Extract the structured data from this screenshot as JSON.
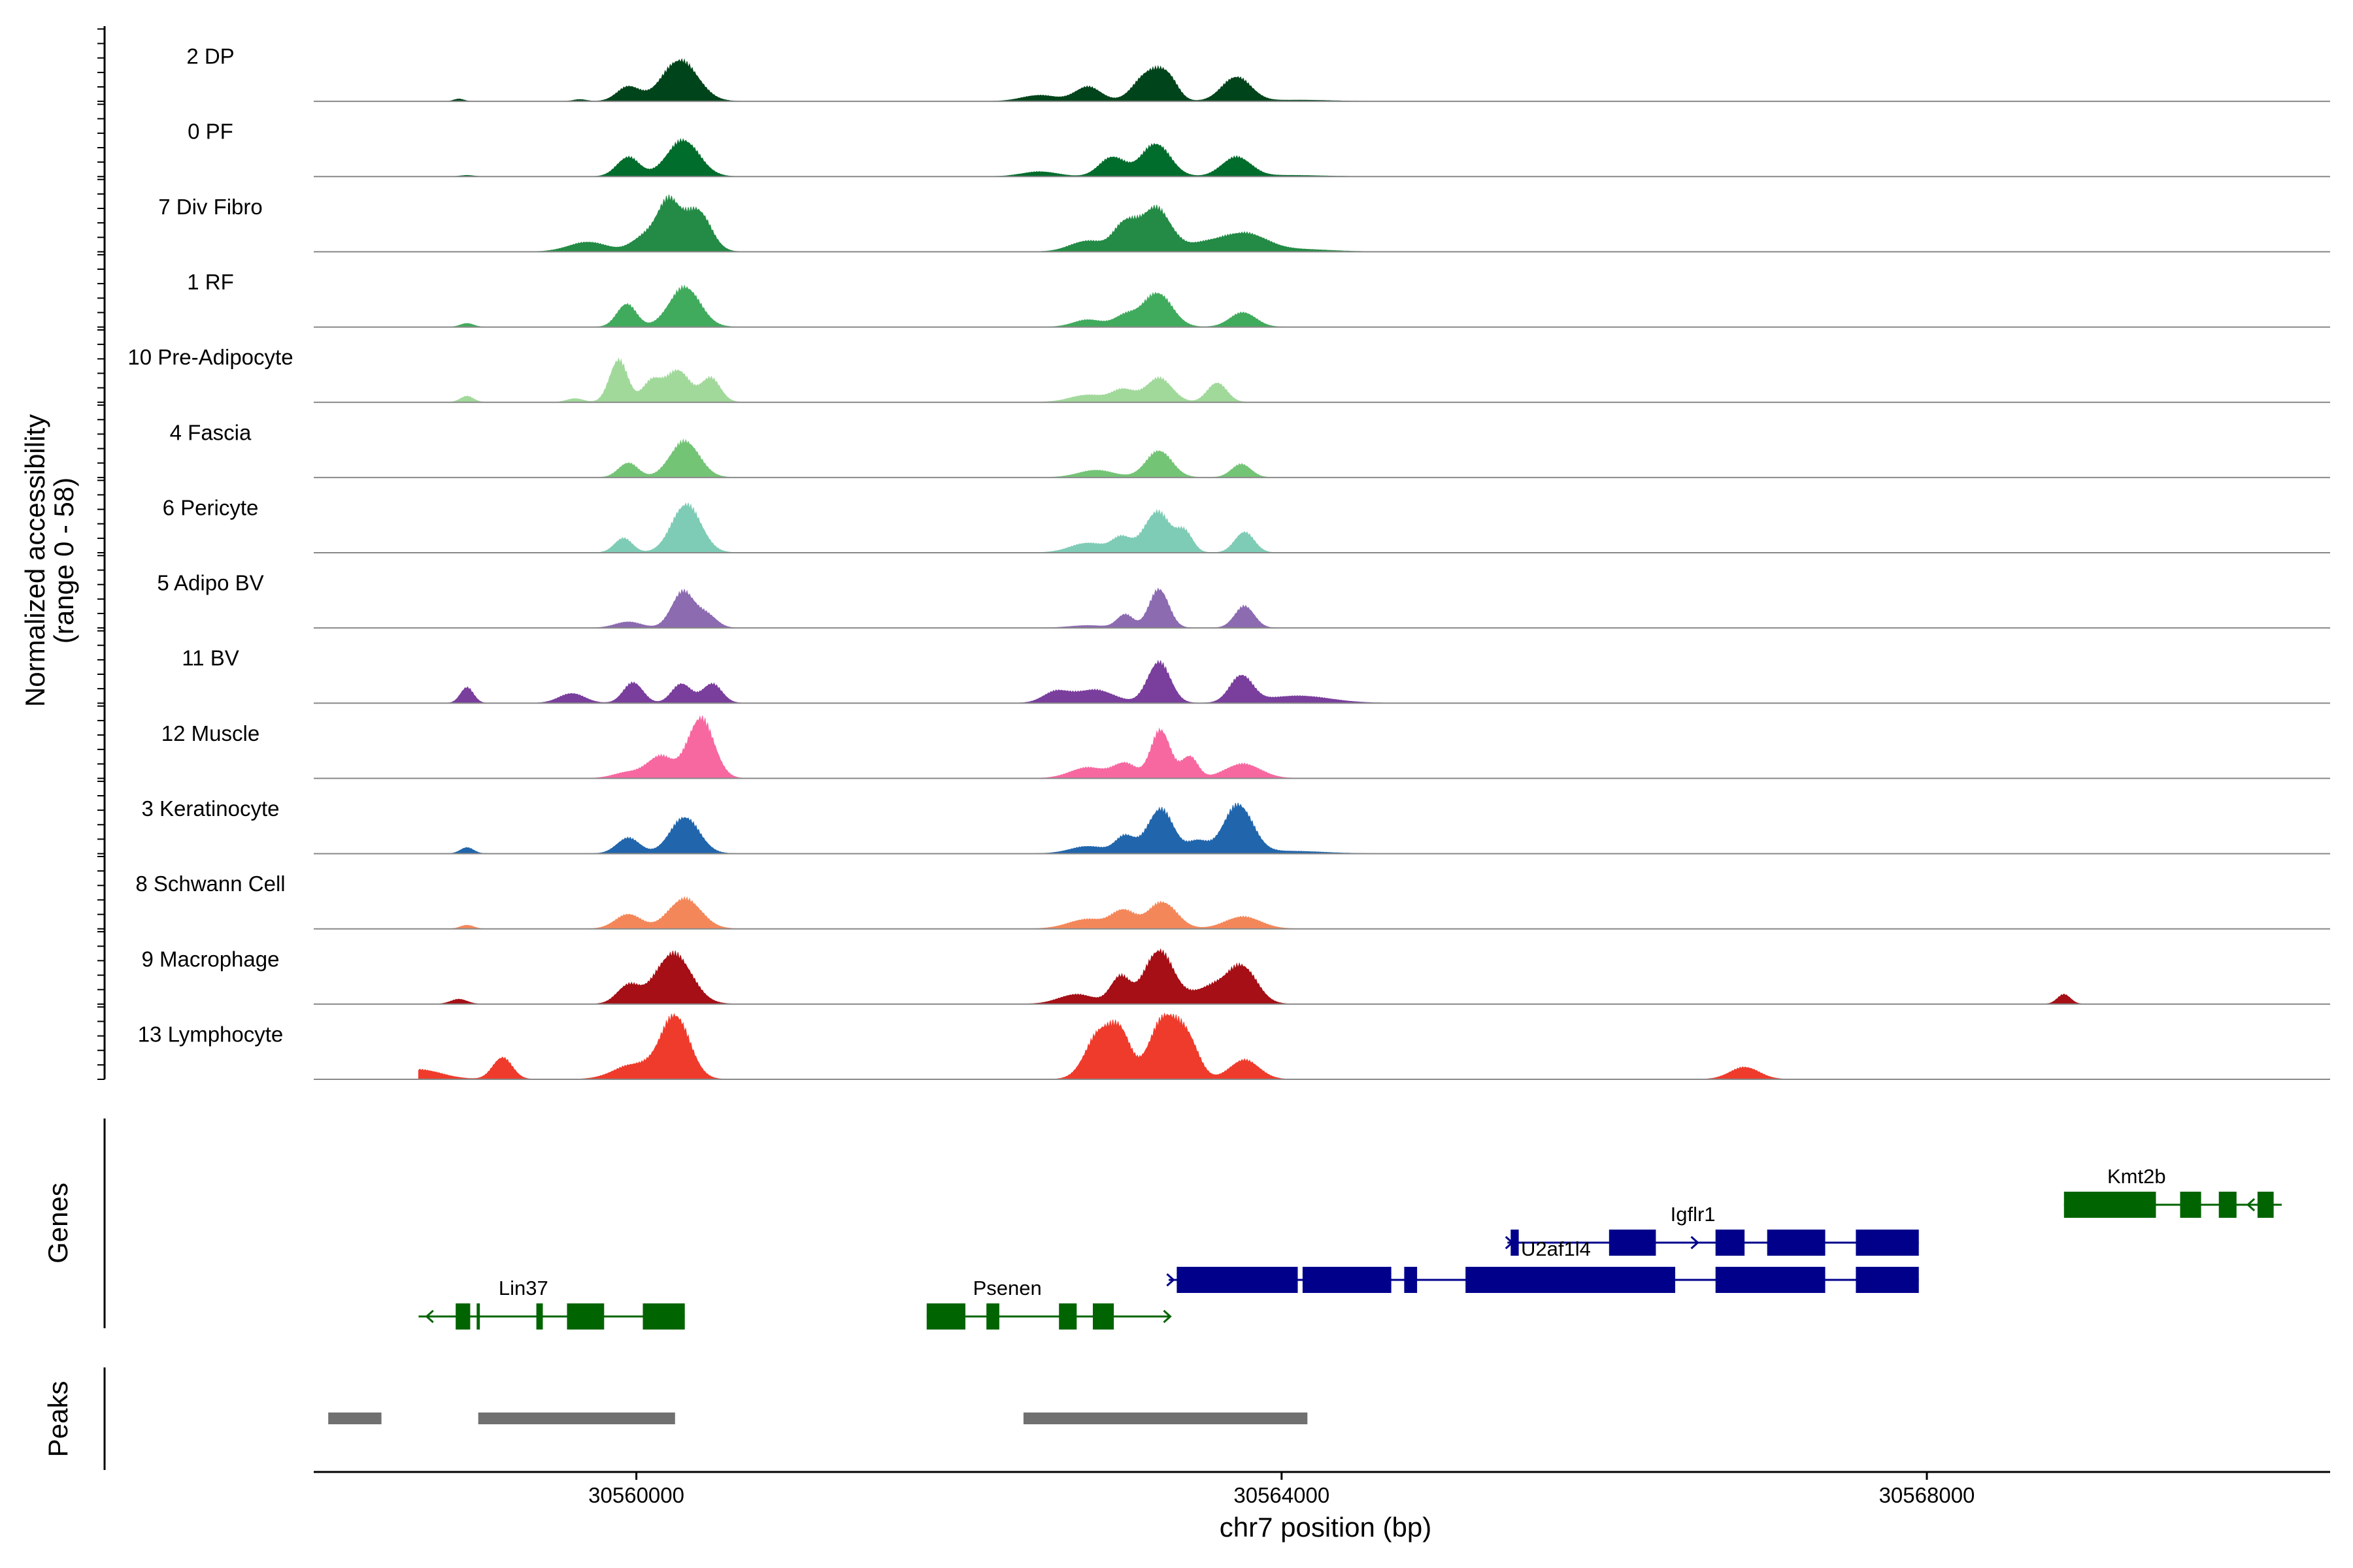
{
  "chart_data": {
    "type": "area",
    "title": "",
    "xlabel": "chr7 position (bp)",
    "ylabel": "Normalized accessibility",
    "ylabel_sub": "(range 0 - 58)",
    "xlim": [
      30558000,
      30570500
    ],
    "ylim": [
      0,
      58
    ],
    "x_ticks": [
      30560000,
      30564000,
      30568000
    ],
    "x_tick_labels": [
      "30560000",
      "30564000",
      "30568000"
    ],
    "tracks": [
      {
        "name": "2 DP",
        "color": "#00441b",
        "peaks": [
          [
            30558900,
            30,
            2
          ],
          [
            30559650,
            40,
            1.5
          ],
          [
            30559950,
            70,
            12
          ],
          [
            30560270,
            110,
            34
          ],
          [
            30562500,
            110,
            5
          ],
          [
            30562800,
            80,
            12
          ],
          [
            30563180,
            90,
            24
          ],
          [
            30563300,
            60,
            14
          ],
          [
            30563720,
            90,
            20
          ],
          [
            30564100,
            200,
            1
          ]
        ]
      },
      {
        "name": "0 PF",
        "color": "#006d2c",
        "peaks": [
          [
            30558950,
            40,
            1
          ],
          [
            30559950,
            70,
            16
          ],
          [
            30560290,
            100,
            30
          ],
          [
            30562500,
            110,
            4
          ],
          [
            30562950,
            80,
            16
          ],
          [
            30563220,
            90,
            27
          ],
          [
            30563720,
            90,
            16
          ],
          [
            30564050,
            200,
            1
          ]
        ]
      },
      {
        "name": "7 Div Fibro",
        "color": "#238b45",
        "peaks": [
          [
            30559700,
            120,
            8
          ],
          [
            30560050,
            80,
            12
          ],
          [
            30560200,
            70,
            40
          ],
          [
            30560380,
            80,
            34
          ],
          [
            30562800,
            110,
            9
          ],
          [
            30563030,
            70,
            22
          ],
          [
            30563220,
            90,
            36
          ],
          [
            30563530,
            130,
            7
          ],
          [
            30563780,
            130,
            14
          ],
          [
            30564100,
            200,
            2
          ]
        ]
      },
      {
        "name": "1 RF",
        "color": "#41ab5d",
        "peaks": [
          [
            30558950,
            40,
            3
          ],
          [
            30559940,
            60,
            19
          ],
          [
            30560300,
            95,
            33
          ],
          [
            30562800,
            90,
            6
          ],
          [
            30563030,
            70,
            9
          ],
          [
            30563230,
            90,
            28
          ],
          [
            30563760,
            80,
            12
          ]
        ]
      },
      {
        "name": "10 Pre-Adipocyte",
        "color": "#a1d99b",
        "peaks": [
          [
            30558950,
            40,
            5
          ],
          [
            30559620,
            50,
            3
          ],
          [
            30559890,
            55,
            35
          ],
          [
            30560100,
            60,
            18
          ],
          [
            30560260,
            70,
            26
          ],
          [
            30560460,
            60,
            20
          ],
          [
            30562800,
            110,
            6
          ],
          [
            30563020,
            70,
            10
          ],
          [
            30563240,
            80,
            20
          ],
          [
            30563600,
            60,
            16
          ]
        ]
      },
      {
        "name": "4 Fascia",
        "color": "#74c476",
        "peaks": [
          [
            30559950,
            60,
            12
          ],
          [
            30560300,
            90,
            30
          ],
          [
            30562850,
            110,
            6
          ],
          [
            30563240,
            80,
            22
          ],
          [
            30563750,
            60,
            11
          ]
        ]
      },
      {
        "name": "6 Pericyte",
        "color": "#7fccb6",
        "peaks": [
          [
            30559920,
            55,
            12
          ],
          [
            30560310,
            90,
            40
          ],
          [
            30562800,
            110,
            8
          ],
          [
            30563010,
            60,
            12
          ],
          [
            30563230,
            80,
            34
          ],
          [
            30563400,
            50,
            16
          ],
          [
            30563770,
            60,
            17
          ]
        ]
      },
      {
        "name": "5 Adipo BV",
        "color": "#8c6bb1",
        "peaks": [
          [
            30559950,
            80,
            5
          ],
          [
            30560290,
            70,
            30
          ],
          [
            30560440,
            60,
            10
          ],
          [
            30562800,
            110,
            2
          ],
          [
            30563030,
            50,
            11
          ],
          [
            30563240,
            60,
            32
          ],
          [
            30563770,
            60,
            18
          ]
        ]
      },
      {
        "name": "11 BV",
        "color": "#7a3e9d",
        "peaks": [
          [
            30558950,
            40,
            13
          ],
          [
            30559600,
            80,
            8
          ],
          [
            30559980,
            60,
            17
          ],
          [
            30560280,
            60,
            16
          ],
          [
            30560470,
            60,
            16
          ],
          [
            30562600,
            80,
            9
          ],
          [
            30562840,
            120,
            11
          ],
          [
            30563240,
            70,
            34
          ],
          [
            30563750,
            70,
            22
          ],
          [
            30564100,
            200,
            6
          ]
        ]
      },
      {
        "name": "12 Muscle",
        "color": "#f768a1",
        "peaks": [
          [
            30559950,
            90,
            5
          ],
          [
            30560150,
            80,
            18
          ],
          [
            30560400,
            80,
            50
          ],
          [
            30562800,
            110,
            9
          ],
          [
            30563030,
            70,
            12
          ],
          [
            30563250,
            60,
            40
          ],
          [
            30563430,
            50,
            18
          ],
          [
            30563760,
            110,
            12
          ]
        ]
      },
      {
        "name": "3 Keratinocyte",
        "color": "#2166ac",
        "peaks": [
          [
            30558950,
            40,
            5
          ],
          [
            30559950,
            70,
            13
          ],
          [
            30560300,
            90,
            30
          ],
          [
            30562800,
            110,
            6
          ],
          [
            30563030,
            60,
            14
          ],
          [
            30563250,
            80,
            37
          ],
          [
            30563480,
            60,
            10
          ],
          [
            30563730,
            90,
            40
          ],
          [
            30564050,
            200,
            2
          ]
        ]
      },
      {
        "name": "8 Schwann Cell",
        "color": "#f4875a",
        "peaks": [
          [
            30558950,
            40,
            3
          ],
          [
            30559950,
            80,
            12
          ],
          [
            30560300,
            100,
            25
          ],
          [
            30562800,
            120,
            8
          ],
          [
            30563020,
            70,
            14
          ],
          [
            30563260,
            90,
            22
          ],
          [
            30563760,
            110,
            10
          ]
        ]
      },
      {
        "name": "9 Macrophage",
        "color": "#a50f15",
        "peaks": [
          [
            30558900,
            50,
            4
          ],
          [
            30559950,
            70,
            15
          ],
          [
            30560230,
            110,
            42
          ],
          [
            30562730,
            110,
            8
          ],
          [
            30563000,
            60,
            22
          ],
          [
            30563240,
            90,
            44
          ],
          [
            30563570,
            120,
            14
          ],
          [
            30563760,
            90,
            28
          ],
          [
            30568850,
            40,
            8
          ]
        ]
      },
      {
        "name": "13 Lymphocyte",
        "color": "#ef3b2c",
        "peaks": [
          [
            30558650,
            140,
            8
          ],
          [
            30559170,
            60,
            18
          ],
          [
            30559980,
            120,
            12
          ],
          [
            30560240,
            90,
            52
          ],
          [
            30562880,
            90,
            40
          ],
          [
            30563010,
            60,
            28
          ],
          [
            30563270,
            90,
            50
          ],
          [
            30563420,
            70,
            28
          ],
          [
            30563770,
            90,
            16
          ],
          [
            30566870,
            90,
            10
          ]
        ]
      }
    ],
    "genes": [
      {
        "name": "Lin37",
        "strand": "-",
        "color": "#006400",
        "start": 30558650,
        "end": 30560300,
        "exons": [
          [
            30558880,
            30558970
          ],
          [
            30559010,
            30559030
          ],
          [
            30559380,
            30559420
          ],
          [
            30559570,
            30559800
          ],
          [
            30560040,
            30560300
          ]
        ],
        "label_x": 30559300
      },
      {
        "name": "Psenen",
        "strand": "+",
        "color": "#006400",
        "start": 30561800,
        "end": 30563300,
        "exons": [
          [
            30561800,
            30562040
          ],
          [
            30562170,
            30562250
          ],
          [
            30562620,
            30562730
          ],
          [
            30562830,
            30562960
          ]
        ],
        "label_x": 30562300
      },
      {
        "name": "Igflr1",
        "strand": "+",
        "color": "#00008b",
        "start": 30565400,
        "end": 30567950,
        "exons": [
          [
            30565420,
            30565470
          ],
          [
            30566030,
            30566320
          ],
          [
            30566690,
            30566870
          ],
          [
            30567010,
            30567370
          ],
          [
            30567560,
            30567950
          ]
        ],
        "label_x": 30566550
      },
      {
        "name": "U2af1l4",
        "strand": "+",
        "color": "#00008b",
        "start": 30563300,
        "end": 30567950,
        "exons": [
          [
            30563350,
            30564100
          ],
          [
            30564130,
            30564680
          ],
          [
            30564760,
            30564840
          ],
          [
            30565140,
            30566440
          ],
          [
            30566690,
            30567370
          ],
          [
            30567560,
            30567950
          ]
        ],
        "label_x": 30565700
      },
      {
        "name": "Kmt2b",
        "strand": "-",
        "color": "#006400",
        "start": 30568850,
        "end": 30570200,
        "exons": [
          [
            30568850,
            30569420
          ],
          [
            30569570,
            30569700
          ],
          [
            30569810,
            30569920
          ],
          [
            30570050,
            30570150
          ]
        ],
        "label_x": 30569300
      }
    ],
    "peak_regions": [
      [
        30558090,
        30558420
      ],
      [
        30559020,
        30560240
      ],
      [
        30562400,
        30564160
      ]
    ],
    "panel_labels": {
      "genes": "Genes",
      "peaks": "Peaks"
    },
    "colors": {
      "axis": "#000000",
      "baseline": "#888888",
      "peak_region": "#707070"
    }
  }
}
